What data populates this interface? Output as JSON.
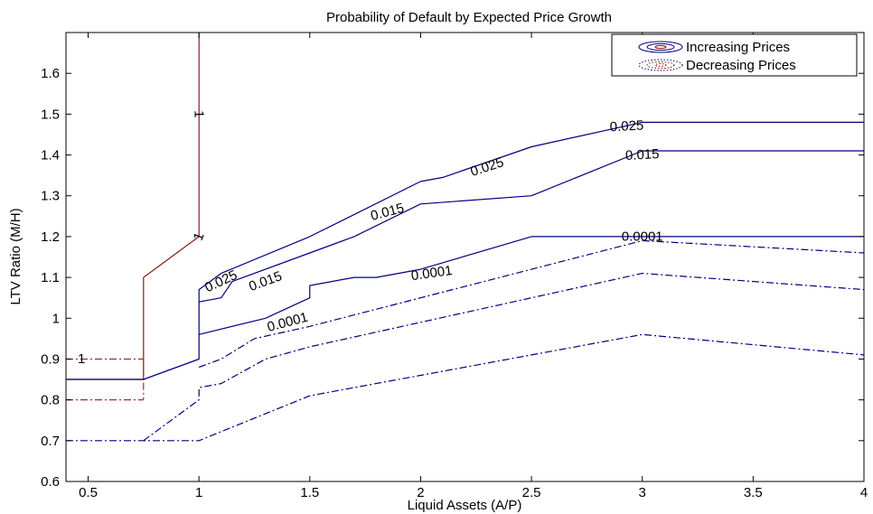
{
  "chart_data": {
    "type": "line",
    "title": "Probability of Default by Expected Price Growth",
    "xlabel": "Liquid Assets (A/P)",
    "ylabel": "LTV Ratio (M/H)",
    "xlim": [
      0.4,
      4.0
    ],
    "ylim": [
      0.6,
      1.7
    ],
    "xticks": [
      0.5,
      1,
      1.5,
      2,
      2.5,
      3,
      3.5,
      4
    ],
    "xtick_labels": [
      "0.5",
      "1",
      "1.5",
      "2",
      "2.5",
      "3",
      "3.5",
      "4"
    ],
    "yticks": [
      0.6,
      0.7,
      0.8,
      0.9,
      1.0,
      1.1,
      1.2,
      1.3,
      1.4,
      1.5,
      1.6
    ],
    "ytick_labels": [
      "0.6",
      "0.7",
      "0.8",
      "0.9",
      "1",
      "1.1",
      "1.2",
      "1.3",
      "1.4",
      "1.5",
      "1.6"
    ],
    "grid": false,
    "legend_position": "top-right",
    "legend": [
      {
        "label": "Increasing Prices",
        "color": "#000080",
        "style": "solid"
      },
      {
        "label": "Decreasing Prices",
        "color": "#8b0000",
        "style": "dotted"
      }
    ],
    "series": [
      {
        "group": "increasing",
        "level": "1",
        "color": "#8b1a1a",
        "dash": "solid",
        "x": [
          0.4,
          0.75,
          0.75,
          1.0,
          1.0
        ],
        "y": [
          0.85,
          0.85,
          1.1,
          1.2,
          1.7
        ]
      },
      {
        "group": "decreasing",
        "level": "1",
        "color": "#a52a2a",
        "dash": "dashdot",
        "x": [
          0.4,
          0.75,
          0.75
        ],
        "y": [
          0.9,
          0.9,
          0.8
        ]
      },
      {
        "group": "decreasing",
        "level": "1",
        "color": "#a52a2a",
        "dash": "dashdot",
        "x": [
          0.4,
          0.75
        ],
        "y": [
          0.8,
          0.8
        ]
      },
      {
        "group": "increasing",
        "level": "0.025",
        "color": "#000080",
        "dash": "solid",
        "x": [
          0.4,
          0.75,
          1.0,
          1.0,
          1.1,
          1.5,
          2.0,
          2.1,
          2.5,
          3.0,
          4.0
        ],
        "y": [
          0.85,
          0.85,
          0.9,
          1.07,
          1.11,
          1.2,
          1.335,
          1.345,
          1.42,
          1.48,
          1.48
        ]
      },
      {
        "group": "increasing",
        "level": "0.015",
        "color": "#000080",
        "dash": "solid",
        "x": [
          1.0,
          1.1,
          1.15,
          1.5,
          1.7,
          2.0,
          2.5,
          3.0,
          4.0
        ],
        "y": [
          1.04,
          1.05,
          1.09,
          1.16,
          1.2,
          1.28,
          1.3,
          1.41,
          1.41
        ]
      },
      {
        "group": "increasing",
        "level": "0.0001",
        "color": "#000080",
        "dash": "solid",
        "x": [
          1.0,
          1.3,
          1.5,
          1.5,
          1.7,
          1.8,
          2.0,
          2.5,
          3.0,
          4.0
        ],
        "y": [
          0.96,
          1.0,
          1.05,
          1.08,
          1.1,
          1.1,
          1.12,
          1.2,
          1.2,
          1.2
        ]
      },
      {
        "group": "decreasing",
        "level": "0.025",
        "color": "#000080",
        "dash": "dashdot",
        "x": [
          1.0,
          1.1,
          1.25,
          1.5,
          2.0,
          2.5,
          3.0,
          4.0
        ],
        "y": [
          0.88,
          0.9,
          0.95,
          0.98,
          1.05,
          1.12,
          1.19,
          1.16
        ]
      },
      {
        "group": "decreasing",
        "level": "0.015",
        "color": "#000080",
        "dash": "dashdot",
        "x": [
          0.75,
          1.0,
          1.0,
          1.1,
          1.3,
          1.5,
          2.0,
          2.5,
          3.0,
          4.0
        ],
        "y": [
          0.7,
          0.8,
          0.83,
          0.84,
          0.9,
          0.93,
          0.99,
          1.05,
          1.11,
          1.07
        ]
      },
      {
        "group": "decreasing",
        "level": "0.0001",
        "color": "#000080",
        "dash": "dashdot",
        "x": [
          0.4,
          0.75,
          1.0,
          1.5,
          2.0,
          2.5,
          3.0,
          4.0
        ],
        "y": [
          0.7,
          0.7,
          0.7,
          0.81,
          0.86,
          0.91,
          0.96,
          0.91
        ]
      }
    ],
    "annotations": [
      {
        "text": "1",
        "x": 0.47,
        "y": 0.9,
        "angle": 0
      },
      {
        "text": "1",
        "x": 1.0,
        "y": 1.5,
        "angle": 90
      },
      {
        "text": "1",
        "x": 1.0,
        "y": 1.2,
        "angle": -70
      },
      {
        "text": "0.025",
        "x": 1.1,
        "y": 1.09,
        "angle": -25
      },
      {
        "text": "0.015",
        "x": 1.3,
        "y": 1.09,
        "angle": -20
      },
      {
        "text": "0.0001",
        "x": 1.4,
        "y": 0.99,
        "angle": -15
      },
      {
        "text": "0.015",
        "x": 1.85,
        "y": 1.26,
        "angle": -15
      },
      {
        "text": "0.0001",
        "x": 2.05,
        "y": 1.11,
        "angle": -8
      },
      {
        "text": "0.025",
        "x": 2.3,
        "y": 1.37,
        "angle": -18
      },
      {
        "text": "0.025",
        "x": 2.93,
        "y": 1.47,
        "angle": -3
      },
      {
        "text": "0.015",
        "x": 3.0,
        "y": 1.4,
        "angle": -3
      },
      {
        "text": "0.0001",
        "x": 3.0,
        "y": 1.2,
        "angle": 0
      }
    ]
  }
}
